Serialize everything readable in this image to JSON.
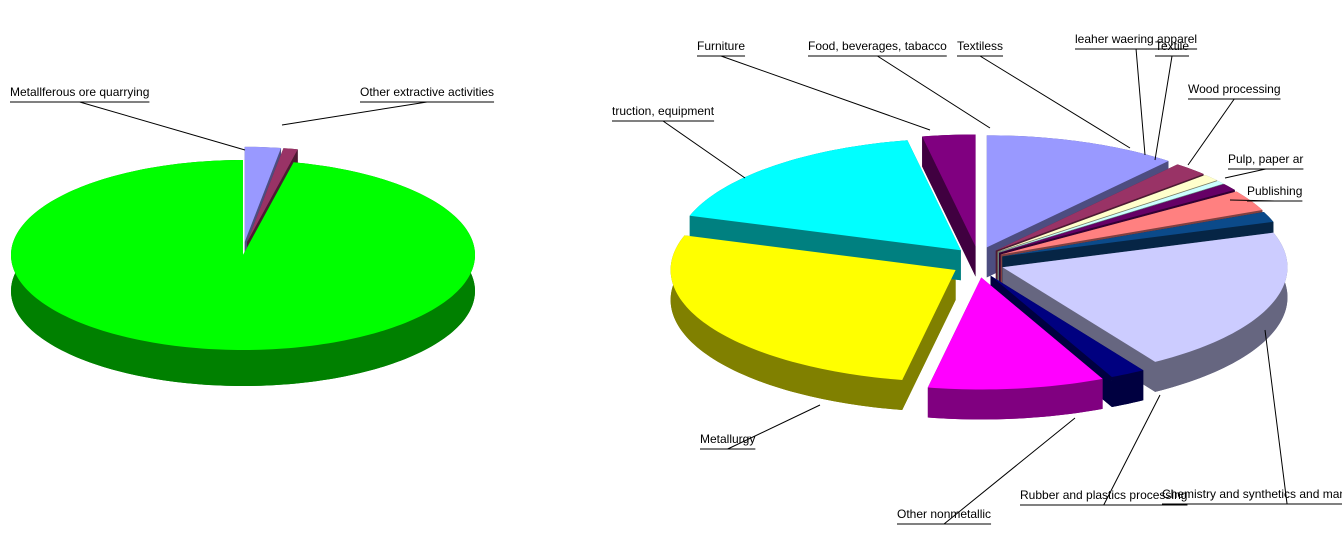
{
  "chart_data": [
    {
      "type": "pie",
      "categories": [
        "Metallferous ore quarrying",
        "Other extractive activities",
        null
      ],
      "values": [
        2.5,
        1,
        96.5
      ],
      "colors": [
        "#9999ff",
        "#993366",
        "#00ff00"
      ]
    },
    {
      "type": "pie",
      "categories": [
        "Food, beverages, tabacco",
        "Textiless",
        "leaher waering apparel",
        "Textile",
        "Wood processing",
        "Pulp, paper ar",
        "Publishing",
        "Chemistry and synthetics and man made fibres",
        "Rubber and plastics processing",
        "Other nonmetallic",
        "Metallurgy",
        "truction, equipment",
        "Furniture"
      ],
      "values": [
        11,
        2,
        1,
        0.5,
        1,
        3,
        1.5,
        21,
        2,
        10,
        27,
        17,
        3
      ],
      "colors": [
        "#9999ff",
        "#993366",
        "#ffffcc",
        "#ccffff",
        "#660066",
        "#ff8080",
        "#0b4a8a",
        "#ccccff",
        "#000080",
        "#ff00ff",
        "#ffff00",
        "#00ffff",
        "#800080"
      ]
    }
  ]
}
